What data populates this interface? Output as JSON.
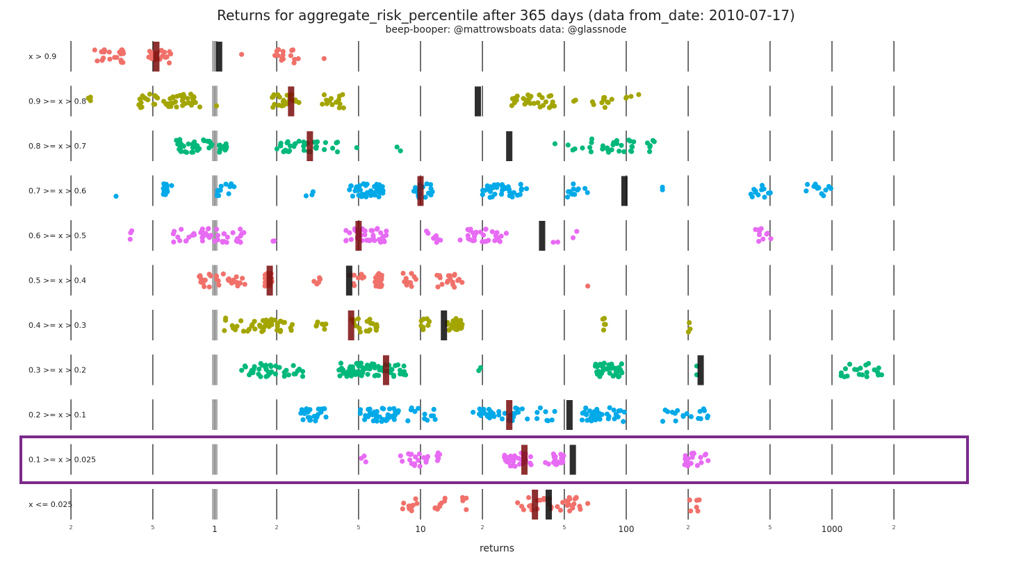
{
  "chart_data": {
    "type": "scatter",
    "title": "Returns for aggregate_risk_percentile after 365 days (data from_date: 2010-07-17)",
    "subtitle": "beep-booper: @mattrowsboats data: @glassnode",
    "xlabel": "returns",
    "xscale": "log",
    "xlim": [
      0.15,
      2500
    ],
    "x_tick_labels": [
      {
        "value": 0.2,
        "label": "2"
      },
      {
        "value": 0.5,
        "label": "5"
      },
      {
        "value": 1,
        "label": "1"
      },
      {
        "value": 2,
        "label": "2"
      },
      {
        "value": 5,
        "label": "5"
      },
      {
        "value": 10,
        "label": "10"
      },
      {
        "value": 20,
        "label": "2"
      },
      {
        "value": 50,
        "label": "5"
      },
      {
        "value": 100,
        "label": "100"
      },
      {
        "value": 200,
        "label": "2"
      },
      {
        "value": 500,
        "label": "5"
      },
      {
        "value": 1000,
        "label": "1000"
      },
      {
        "value": 2000,
        "label": "2"
      }
    ],
    "reference_line": 1,
    "highlighted_category": "0.1 >= x > 0.025",
    "highlight_color": "#7b2a8a",
    "mean_bar_color": "#111111",
    "median_bar_color": "#7a0c0c",
    "series": [
      {
        "name": "x > 0.9",
        "color": "#f0716a",
        "median": 0.52,
        "mean": 1.05,
        "clusters": [
          [
            0.26,
            0.36,
            24
          ],
          [
            0.47,
            0.62,
            22
          ],
          [
            1.35,
            1.35,
            1
          ],
          [
            1.95,
            2.6,
            18
          ],
          [
            3.4,
            3.4,
            1
          ]
        ]
      },
      {
        "name": "0.9 >= x > 0.8",
        "color": "#a3a500",
        "median": 2.35,
        "mean": 19,
        "clusters": [
          [
            0.24,
            0.25,
            3
          ],
          [
            0.42,
            0.85,
            55
          ],
          [
            1.02,
            1.02,
            1
          ],
          [
            1.9,
            2.6,
            22
          ],
          [
            3.3,
            4.3,
            14
          ],
          [
            27,
            45,
            30
          ],
          [
            55,
            58,
            2
          ],
          [
            68,
            120,
            14
          ]
        ]
      },
      {
        "name": "0.8 >= x > 0.7",
        "color": "#00b87a",
        "median": 2.9,
        "mean": 27,
        "clusters": [
          [
            0.65,
            1.15,
            45
          ],
          [
            2.0,
            3.2,
            30
          ],
          [
            3.4,
            4.0,
            6
          ],
          [
            4.9,
            4.9,
            1
          ],
          [
            7.5,
            8.3,
            2
          ],
          [
            45,
            45,
            1
          ],
          [
            52,
            110,
            28
          ],
          [
            120,
            150,
            6
          ]
        ]
      },
      {
        "name": "0.7 >= x > 0.6",
        "color": "#00a9e8",
        "median": 10,
        "mean": 98,
        "clusters": [
          [
            0.33,
            0.35,
            1
          ],
          [
            0.55,
            0.62,
            14
          ],
          [
            1.0,
            1.25,
            12
          ],
          [
            2.7,
            3.1,
            3
          ],
          [
            4.5,
            6.8,
            40
          ],
          [
            9,
            11.5,
            18
          ],
          [
            20,
            33,
            35
          ],
          [
            50,
            65,
            12
          ],
          [
            150,
            150,
            2
          ],
          [
            400,
            520,
            12
          ],
          [
            700,
            1000,
            12
          ]
        ]
      },
      {
        "name": "0.6 >= x > 0.5",
        "color": "#e76bf3",
        "median": 5,
        "mean": 39,
        "clusters": [
          [
            0.38,
            0.42,
            3
          ],
          [
            0.62,
            1.4,
            45
          ],
          [
            1.8,
            1.95,
            3
          ],
          [
            4.3,
            7.0,
            40
          ],
          [
            10,
            13,
            8
          ],
          [
            15,
            25,
            30
          ],
          [
            26,
            27,
            1
          ],
          [
            44,
            47,
            2
          ],
          [
            55,
            60,
            2
          ],
          [
            420,
            510,
            10
          ]
        ]
      },
      {
        "name": "0.5 >= x > 0.4",
        "color": "#f0716a",
        "median": 1.85,
        "mean": 4.5,
        "clusters": [
          [
            0.82,
            1.4,
            30
          ],
          [
            1.75,
            1.9,
            25
          ],
          [
            3.0,
            3.3,
            6
          ],
          [
            4.5,
            5.5,
            10
          ],
          [
            6.0,
            6.5,
            20
          ],
          [
            7.5,
            9.5,
            10
          ],
          [
            12,
            16,
            18
          ],
          [
            65,
            65,
            1
          ]
        ]
      },
      {
        "name": "0.4 >= x > 0.3",
        "color": "#a3a500",
        "median": 4.6,
        "mean": 13,
        "clusters": [
          [
            1.1,
            1.6,
            15
          ],
          [
            1.65,
            2.4,
            30
          ],
          [
            3.0,
            3.5,
            8
          ],
          [
            4.6,
            6.2,
            20
          ],
          [
            10,
            11.5,
            8
          ],
          [
            13.5,
            16,
            30
          ],
          [
            75,
            80,
            5
          ],
          [
            200,
            205,
            3
          ]
        ]
      },
      {
        "name": "0.3 >= x > 0.2",
        "color": "#00b87a",
        "median": 6.8,
        "mean": 230,
        "clusters": [
          [
            1.35,
            2.0,
            28
          ],
          [
            2.0,
            2.7,
            12
          ],
          [
            4.0,
            7.5,
            60
          ],
          [
            7.5,
            8.5,
            8
          ],
          [
            19,
            20,
            2
          ],
          [
            70,
            100,
            40
          ],
          [
            220,
            220,
            2
          ],
          [
            1100,
            1800,
            20
          ]
        ]
      },
      {
        "name": "0.2 >= x > 0.1",
        "color": "#00a9e8",
        "median": 27,
        "mean": 53,
        "clusters": [
          [
            2.6,
            3.5,
            25
          ],
          [
            5.0,
            8.0,
            40
          ],
          [
            8.5,
            12,
            12
          ],
          [
            18,
            18,
            1
          ],
          [
            19,
            30,
            30
          ],
          [
            30,
            45,
            10
          ],
          [
            60,
            100,
            40
          ],
          [
            150,
            250,
            18
          ]
        ]
      },
      {
        "name": "0.1 >= x > 0.025",
        "color": "#e76bf3",
        "median": 32,
        "mean": 55,
        "clusters": [
          [
            5.0,
            5.5,
            3
          ],
          [
            8.0,
            11,
            18
          ],
          [
            12,
            12.5,
            5
          ],
          [
            25,
            35,
            30
          ],
          [
            40,
            50,
            20
          ],
          [
            190,
            250,
            20
          ]
        ]
      },
      {
        "name": "x <= 0.025",
        "color": "#f0716a",
        "median": 36,
        "mean": 42,
        "clusters": [
          [
            8.0,
            10,
            10
          ],
          [
            11,
            14,
            8
          ],
          [
            16,
            17,
            4
          ],
          [
            28,
            60,
            35
          ],
          [
            65,
            65,
            1
          ],
          [
            200,
            230,
            6
          ]
        ]
      }
    ]
  }
}
